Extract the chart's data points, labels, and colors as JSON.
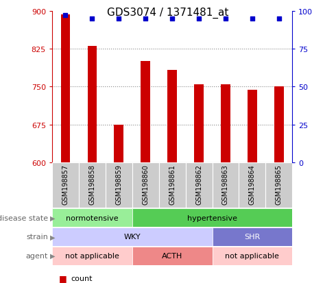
{
  "title": "GDS3074 / 1371481_at",
  "samples": [
    "GSM198857",
    "GSM198858",
    "GSM198859",
    "GSM198860",
    "GSM198861",
    "GSM198862",
    "GSM198863",
    "GSM198864",
    "GSM198865"
  ],
  "counts": [
    893,
    831,
    674,
    800,
    783,
    754,
    754,
    744,
    750
  ],
  "percentile_ranks": [
    97,
    95,
    95,
    95,
    95,
    95,
    95,
    95,
    95
  ],
  "ylim_left": [
    600,
    900
  ],
  "ylim_right": [
    0,
    100
  ],
  "yticks_left": [
    600,
    675,
    750,
    825,
    900
  ],
  "yticks_right": [
    0,
    25,
    50,
    75,
    100
  ],
  "bar_color": "#cc0000",
  "dot_color": "#0000cc",
  "grid_color": "#888888",
  "disease_state_normotensive_color": "#99ee99",
  "disease_state_hypertensive_color": "#55cc55",
  "strain_wky_color": "#ccccff",
  "strain_shr_color": "#7777cc",
  "agent_na_color": "#ffcccc",
  "agent_acth_color": "#ee8888",
  "tick_color_left": "#cc0000",
  "tick_color_right": "#0000cc",
  "legend_count_color": "#cc0000",
  "legend_dot_color": "#0000cc",
  "row_label_color": "#666666",
  "arrow_color": "#888888",
  "sample_bg_color": "#cccccc",
  "annotation_rows": [
    "disease state",
    "strain",
    "agent"
  ]
}
